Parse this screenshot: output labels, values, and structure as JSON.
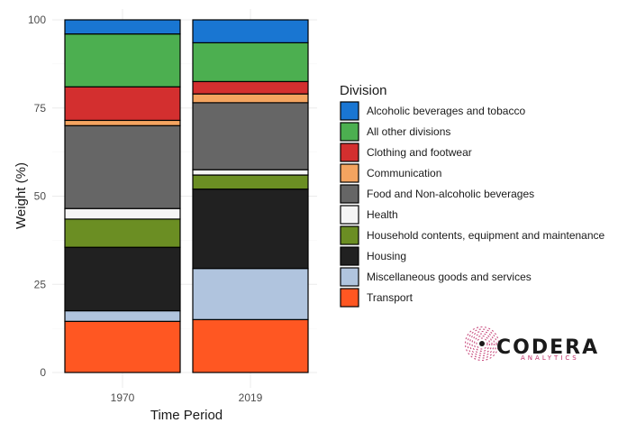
{
  "chart_data": {
    "type": "bar",
    "stacked": true,
    "xlabel": "Time Period",
    "ylabel": "Weight (%)",
    "categories": [
      "1970",
      "2019"
    ],
    "yticks": [
      0,
      25,
      50,
      75,
      100
    ],
    "ylim": [
      0,
      100
    ],
    "grid": true,
    "legend_title": "Division",
    "legend_position": "right",
    "series": [
      {
        "name": "Transport",
        "color": "#ff5722",
        "values": [
          14.5,
          15.0
        ]
      },
      {
        "name": "Miscellaneous goods and services",
        "color": "#b0c4de",
        "values": [
          3.0,
          14.5
        ]
      },
      {
        "name": "Housing",
        "color": "#212121",
        "values": [
          18.0,
          22.5
        ]
      },
      {
        "name": "Household contents, equipment and maintenance",
        "color": "#6b8e23",
        "values": [
          8.0,
          4.0
        ]
      },
      {
        "name": "Health",
        "color": "#f5f5f5",
        "values": [
          3.0,
          1.5
        ]
      },
      {
        "name": "Food and Non-alcoholic beverages",
        "color": "#666666",
        "values": [
          23.5,
          19.0
        ]
      },
      {
        "name": "Communication",
        "color": "#f4a460",
        "values": [
          1.5,
          2.5
        ]
      },
      {
        "name": "Clothing and footwear",
        "color": "#d32f2f",
        "values": [
          9.5,
          3.5
        ]
      },
      {
        "name": "All other divisions",
        "color": "#4caf50",
        "values": [
          15.0,
          11.0
        ]
      },
      {
        "name": "Alcoholic beverages and tobacco",
        "color": "#1976d2",
        "values": [
          4.0,
          6.5
        ]
      }
    ],
    "legend_order": [
      "Alcoholic beverages and tobacco",
      "All other divisions",
      "Clothing and footwear",
      "Communication",
      "Food and Non-alcoholic beverages",
      "Health",
      "Household contents, equipment and maintenance",
      "Housing",
      "Miscellaneous goods and services",
      "Transport"
    ]
  },
  "logo": {
    "word": "CODERA",
    "sub": "ANALYTICS",
    "accent": "#c0306a"
  }
}
